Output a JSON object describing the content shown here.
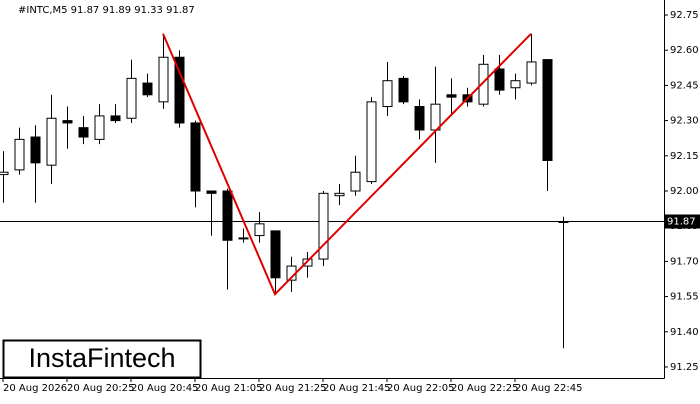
{
  "chart_data": {
    "type": "candlestick",
    "title": "#INTC,M5  91.87 91.89 91.33 91.87",
    "logo": "InstaFintech",
    "categories": [
      "20 Aug 2026",
      null,
      null,
      null,
      "20 Aug 20:25",
      null,
      null,
      null,
      "20 Aug 20:45",
      null,
      null,
      null,
      "20 Aug 21:05",
      null,
      null,
      null,
      "20 Aug 21:25",
      null,
      null,
      null,
      "20 Aug 21:45",
      null,
      null,
      null,
      "20 Aug 22:05",
      null,
      null,
      null,
      "20 Aug 22:25",
      null,
      null,
      null,
      "20 Aug 22:45",
      null,
      null,
      null
    ],
    "open": [
      92.07,
      92.09,
      92.23,
      92.11,
      92.3,
      92.27,
      92.22,
      92.32,
      92.31,
      92.46,
      92.38,
      92.57,
      92.29,
      92.0,
      92.0,
      91.8,
      91.81,
      91.83,
      91.62,
      91.68,
      91.71,
      91.98,
      92.0,
      92.04,
      92.36,
      92.48,
      92.36,
      92.26,
      92.41,
      92.41,
      92.37,
      92.52,
      92.44,
      92.46,
      92.56,
      91.87
    ],
    "high": [
      92.17,
      92.27,
      92.28,
      92.41,
      92.36,
      92.32,
      92.37,
      92.37,
      92.56,
      92.5,
      92.67,
      92.6,
      92.3,
      92.0,
      92.01,
      91.84,
      91.91,
      91.83,
      91.72,
      91.74,
      92.0,
      92.03,
      92.15,
      92.4,
      92.55,
      92.49,
      92.39,
      92.53,
      92.48,
      92.44,
      92.58,
      92.58,
      92.5,
      92.67,
      92.56,
      91.89
    ],
    "low": [
      91.95,
      92.07,
      91.95,
      92.03,
      92.18,
      92.2,
      92.2,
      92.29,
      92.29,
      92.4,
      92.35,
      92.27,
      91.93,
      91.81,
      91.58,
      91.78,
      91.78,
      91.56,
      91.57,
      91.63,
      91.68,
      91.94,
      91.98,
      92.03,
      92.32,
      92.37,
      92.22,
      92.12,
      92.33,
      92.36,
      92.36,
      92.41,
      92.39,
      92.45,
      92.0,
      91.33
    ],
    "close": [
      92.08,
      92.22,
      92.12,
      92.31,
      92.29,
      92.23,
      92.32,
      92.3,
      92.48,
      92.41,
      92.57,
      92.29,
      92.0,
      91.99,
      91.79,
      91.8,
      91.86,
      91.63,
      91.68,
      91.71,
      91.99,
      91.99,
      92.08,
      92.38,
      92.47,
      92.38,
      92.26,
      92.37,
      92.4,
      92.38,
      92.54,
      92.43,
      92.47,
      92.55,
      92.13,
      91.87
    ],
    "up_color": "#ffffff",
    "down_color": "#000000",
    "current_price": 91.87,
    "pattern": {
      "color": "#e00000",
      "points": [
        {
          "index": 10,
          "value": 92.67
        },
        {
          "index": 17,
          "value": 91.56
        },
        {
          "index": 33,
          "value": 92.67
        }
      ]
    },
    "ylim": [
      91.203,
      92.814
    ],
    "yticks": [
      92.75,
      {
        "value": 92.6,
        "label": "92.60"
      },
      92.45,
      {
        "value": 92.3,
        "label": "92.30"
      },
      92.15,
      {
        "value": 92.0,
        "label": "92.00"
      },
      91.85,
      {
        "value": 91.7,
        "label": "91.70"
      },
      91.55,
      {
        "value": 91.4,
        "label": "91.40"
      },
      91.25
    ]
  }
}
